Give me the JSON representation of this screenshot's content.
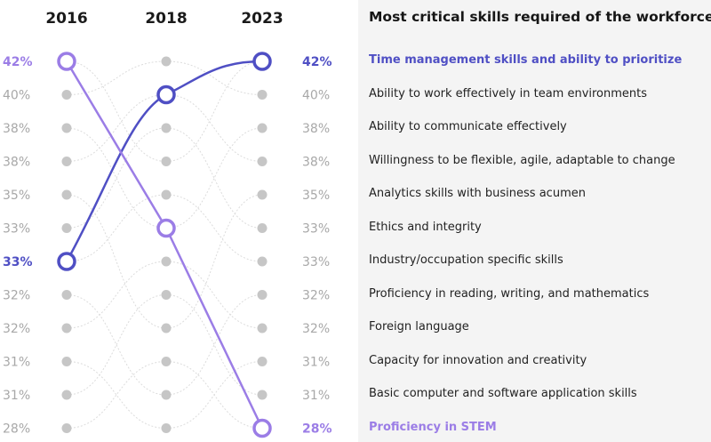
{
  "chart_data": {
    "type": "slope",
    "title": "Most critical skills required of the workforce",
    "years": [
      "2016",
      "2018",
      "2023"
    ],
    "percent_labels": [
      "42%",
      "40%",
      "38%",
      "38%",
      "35%",
      "33%",
      "33%",
      "32%",
      "32%",
      "31%",
      "31%",
      "28%"
    ],
    "skills": [
      "Time management skills and ability to prioritize",
      "Ability to work effectively in team environments",
      "Ability to communicate effectively",
      "Willingness to be flexible, agile, adaptable to change",
      "Analytics skills with business acumen",
      "Ethics and integrity",
      "Industry/occupation specific skills",
      "Proficiency in reading, writing, and mathematics",
      "Foreign language",
      "Capacity for innovation and creativity",
      "Basic computer and software application skills",
      "Proficiency in STEM"
    ],
    "highlighted_series": [
      {
        "name": "Time management skills and ability to prioritize",
        "color": "#4f4fc4",
        "values": [
          33,
          40,
          42
        ],
        "ranks": [
          7,
          2,
          1
        ]
      },
      {
        "name": "Proficiency in STEM",
        "color": "#9b7de6",
        "values": [
          42,
          33,
          28
        ],
        "ranks": [
          1,
          6,
          12
        ]
      }
    ]
  },
  "colors": {
    "highlight_dark": "#4f4fc4",
    "highlight_light": "#9b7de6",
    "muted_text": "#a8a8a8",
    "dot": "#c6c6c6",
    "connector": "#dcdcdc",
    "panel_bg": "#f4f4f4"
  }
}
